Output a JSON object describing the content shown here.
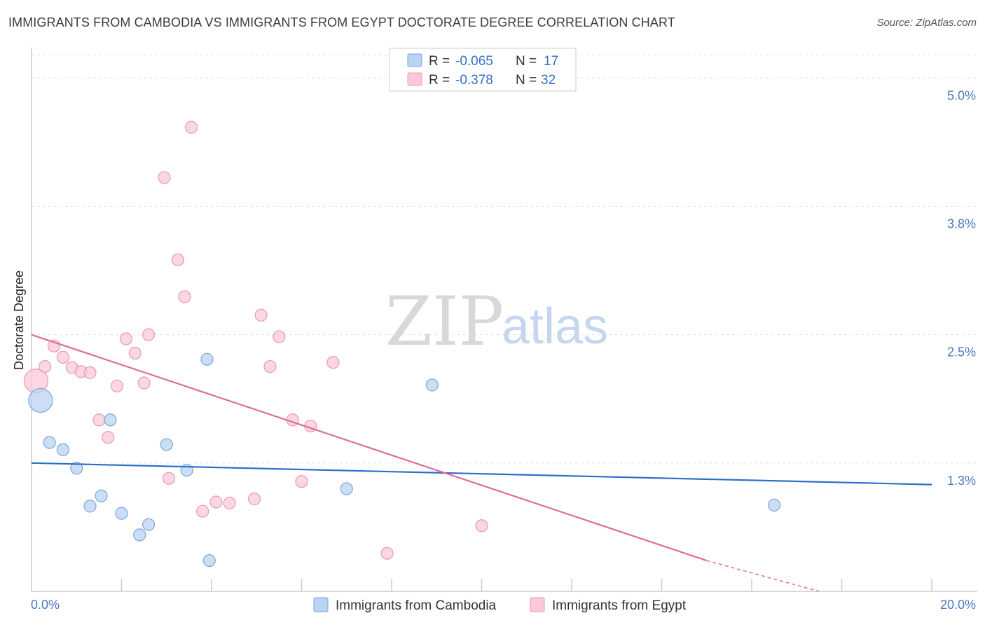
{
  "title": "IMMIGRANTS FROM CAMBODIA VS IMMIGRANTS FROM EGYPT DOCTORATE DEGREE CORRELATION CHART",
  "source": "Source: ZipAtlas.com",
  "watermark": {
    "zip": "ZIP",
    "atlas": "atlas"
  },
  "legend": {
    "cambodia": {
      "r_label": "R =",
      "r_value": "-0.065",
      "n_label": "N =",
      "n_value": "17"
    },
    "egypt": {
      "r_label": "R =",
      "r_value": "-0.378",
      "n_label": "N =",
      "n_value": "32"
    }
  },
  "bottom_legend": {
    "cambodia": "Immigrants from Cambodia",
    "egypt": "Immigrants from Egypt"
  },
  "colors": {
    "cambodia_fill": "#b9d3f3",
    "cambodia_stroke": "#7aa6dd",
    "cambodia_line": "#2a6fcb",
    "egypt_fill": "#f9c9d8",
    "egypt_stroke": "#eb98b3",
    "egypt_line": "#e06c96"
  },
  "chart_data": {
    "type": "scatter",
    "title": "IMMIGRANTS FROM CAMBODIA VS IMMIGRANTS FROM EGYPT DOCTORATE DEGREE CORRELATION CHART",
    "xlabel": "",
    "ylabel": "Doctorate Degree",
    "xlim": [
      0,
      20
    ],
    "ylim": [
      0,
      5.2
    ],
    "x_tick_labels": [
      "0.0%",
      "20.0%"
    ],
    "y_ticks": [
      {
        "value": 1.25,
        "label": "1.3%"
      },
      {
        "value": 2.5,
        "label": "2.5%"
      },
      {
        "value": 3.75,
        "label": "3.8%"
      },
      {
        "value": 5.0,
        "label": "5.0%"
      }
    ],
    "series": [
      {
        "name": "Immigrants from Cambodia",
        "points": [
          {
            "x": 0.2,
            "y": 1.86,
            "size": "large"
          },
          {
            "x": 0.4,
            "y": 1.45
          },
          {
            "x": 0.7,
            "y": 1.38
          },
          {
            "x": 1.0,
            "y": 1.2
          },
          {
            "x": 1.3,
            "y": 0.83
          },
          {
            "x": 1.55,
            "y": 0.93
          },
          {
            "x": 1.75,
            "y": 1.67
          },
          {
            "x": 2.0,
            "y": 0.76
          },
          {
            "x": 2.4,
            "y": 0.55
          },
          {
            "x": 2.6,
            "y": 0.65
          },
          {
            "x": 3.0,
            "y": 1.43
          },
          {
            "x": 3.45,
            "y": 1.18
          },
          {
            "x": 3.9,
            "y": 2.26
          },
          {
            "x": 3.95,
            "y": 0.3
          },
          {
            "x": 7.0,
            "y": 1.0
          },
          {
            "x": 8.9,
            "y": 2.01
          },
          {
            "x": 16.5,
            "y": 0.84
          }
        ],
        "trend": {
          "x": [
            0,
            20
          ],
          "y": [
            1.25,
            1.04
          ]
        }
      },
      {
        "name": "Immigrants from Egypt",
        "points": [
          {
            "x": 0.1,
            "y": 2.05,
            "size": "large"
          },
          {
            "x": 0.3,
            "y": 2.19
          },
          {
            "x": 0.5,
            "y": 2.39
          },
          {
            "x": 0.7,
            "y": 2.28
          },
          {
            "x": 0.9,
            "y": 2.18
          },
          {
            "x": 1.1,
            "y": 2.14
          },
          {
            "x": 1.3,
            "y": 2.13
          },
          {
            "x": 1.5,
            "y": 1.67
          },
          {
            "x": 1.7,
            "y": 1.5
          },
          {
            "x": 1.9,
            "y": 2.0
          },
          {
            "x": 2.1,
            "y": 2.46
          },
          {
            "x": 2.3,
            "y": 2.32
          },
          {
            "x": 2.5,
            "y": 2.03
          },
          {
            "x": 2.6,
            "y": 2.5
          },
          {
            "x": 2.95,
            "y": 4.03
          },
          {
            "x": 3.05,
            "y": 1.1
          },
          {
            "x": 3.25,
            "y": 3.23
          },
          {
            "x": 3.4,
            "y": 2.87
          },
          {
            "x": 3.55,
            "y": 4.52
          },
          {
            "x": 3.8,
            "y": 0.78
          },
          {
            "x": 4.1,
            "y": 0.87
          },
          {
            "x": 4.4,
            "y": 0.86
          },
          {
            "x": 4.95,
            "y": 0.9
          },
          {
            "x": 5.1,
            "y": 2.69
          },
          {
            "x": 5.3,
            "y": 2.19
          },
          {
            "x": 5.5,
            "y": 2.48
          },
          {
            "x": 5.8,
            "y": 1.67
          },
          {
            "x": 6.2,
            "y": 1.61
          },
          {
            "x": 6.7,
            "y": 2.23
          },
          {
            "x": 6.0,
            "y": 1.07
          },
          {
            "x": 7.9,
            "y": 0.37
          },
          {
            "x": 10.0,
            "y": 0.64
          }
        ],
        "trend": {
          "x": [
            0,
            15
          ],
          "y": [
            2.5,
            0.3
          ]
        },
        "trend_dashed": {
          "x": [
            15,
            17.5
          ],
          "y": [
            0.3,
            -0.07
          ]
        }
      }
    ]
  }
}
